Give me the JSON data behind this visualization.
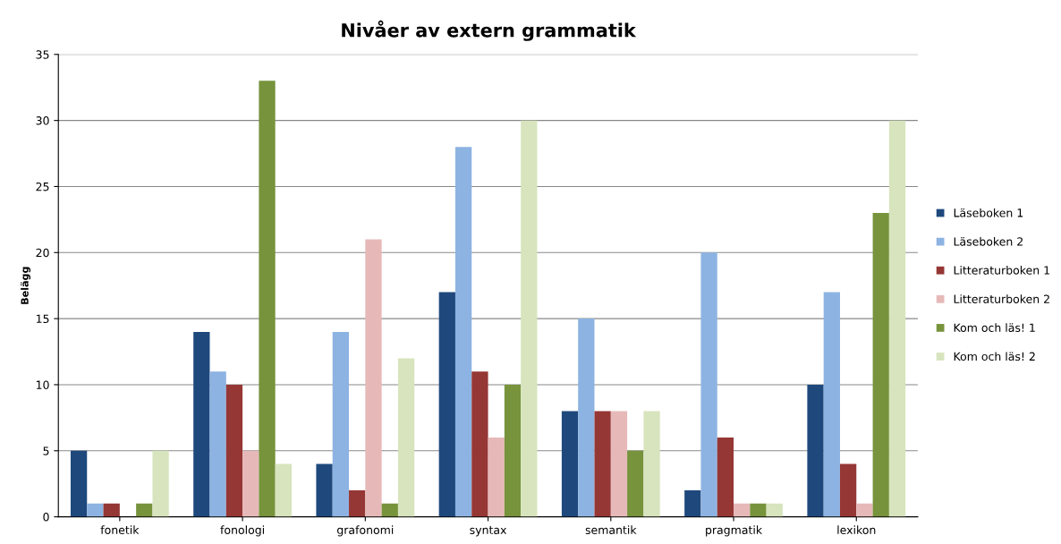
{
  "chart_data": {
    "type": "bar",
    "title": "Nivåer av extern grammatik",
    "ylabel": "Belägg",
    "categories": [
      "fonetik",
      "fonologi",
      "grafonomi",
      "syntax",
      "semantik",
      "pragmatik",
      "lexikon"
    ],
    "series": [
      {
        "name": "Läseboken 1",
        "color": "#1f497d",
        "values": [
          5,
          14,
          4,
          17,
          8,
          2,
          10
        ]
      },
      {
        "name": "Läseboken 2",
        "color": "#8db3e2",
        "values": [
          1,
          11,
          14,
          28,
          15,
          20,
          17
        ]
      },
      {
        "name": "Litteraturboken 1",
        "color": "#953735",
        "values": [
          1,
          10,
          2,
          11,
          8,
          6,
          4
        ]
      },
      {
        "name": "Litteraturboken 2",
        "color": "#e6b9b8",
        "values": [
          0,
          5,
          21,
          6,
          8,
          1,
          1
        ]
      },
      {
        "name": "Kom och läs! 1",
        "color": "#77933c",
        "values": [
          1,
          33,
          1,
          10,
          5,
          1,
          23
        ]
      },
      {
        "name": "Kom och läs! 2",
        "color": "#d7e4bd",
        "values": [
          5,
          4,
          12,
          30,
          8,
          1,
          30
        ]
      }
    ],
    "ylim": [
      0,
      35
    ],
    "yticks": [
      0,
      5,
      10,
      15,
      20,
      25,
      30,
      35
    ],
    "grid": "y",
    "legend": "right"
  }
}
